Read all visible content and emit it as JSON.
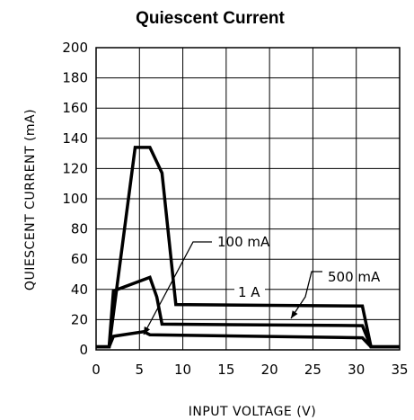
{
  "chart_data": {
    "type": "line",
    "title": "Quiescent Current",
    "xlabel": "INPUT VOLTAGE (V)",
    "ylabel": "QUIESCENT CURRENT (mA)",
    "xlim": [
      0,
      35
    ],
    "ylim": [
      0,
      200
    ],
    "xticks": [
      0,
      5,
      10,
      15,
      20,
      25,
      30,
      35
    ],
    "yticks": [
      0,
      20,
      40,
      60,
      80,
      100,
      120,
      140,
      160,
      180,
      200
    ],
    "grid": true,
    "series": [
      {
        "name": "1 A",
        "x": [
          0,
          1.5,
          4.5,
          6.2,
          7.6,
          9.2,
          30.7,
          31.7,
          35
        ],
        "y": [
          2,
          2,
          134,
          134,
          117,
          30,
          29,
          2,
          2
        ]
      },
      {
        "name": "500 mA",
        "x": [
          0,
          1.5,
          2.0,
          6.2,
          7.0,
          7.6,
          30.7,
          31.7,
          35
        ],
        "y": [
          2,
          2,
          39,
          48,
          35,
          17,
          16,
          2,
          2
        ]
      },
      {
        "name": "100 mA",
        "x": [
          0,
          1.5,
          2.0,
          5.5,
          6.2,
          30.7,
          31.7,
          35
        ],
        "y": [
          2,
          2,
          9,
          12,
          10,
          8,
          2,
          2
        ]
      }
    ],
    "annotations": [
      {
        "text": "100 mA",
        "series": "100 mA"
      },
      {
        "text": "500 mA",
        "series": "500 mA"
      },
      {
        "text": "1 A",
        "series": "1 A"
      }
    ]
  }
}
